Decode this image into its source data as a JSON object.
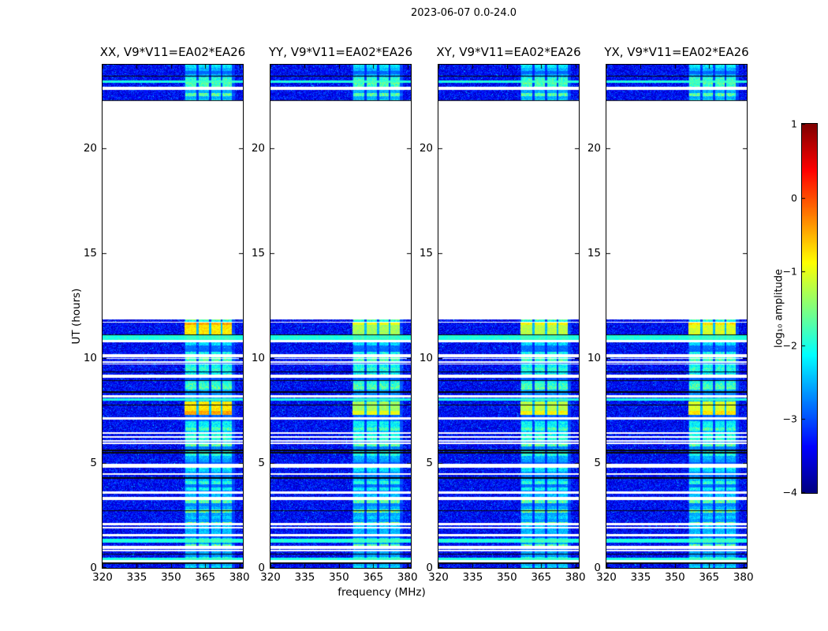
{
  "title": "2023-06-07 0.0-24.0",
  "chart_data": {
    "type": "heatmap",
    "title": "2023-06-07 0.0-24.0",
    "xlabel": "frequency (MHz)",
    "ylabel": "UT (hours)",
    "x_ticks": [
      320,
      335,
      350,
      365,
      380
    ],
    "y_ticks": [
      0,
      5,
      10,
      15,
      20
    ],
    "x_range": [
      320,
      381.5
    ],
    "y_range": [
      0,
      24
    ],
    "panels": [
      {
        "pol": "XX",
        "label": "XX, V9*V11=EA02*EA26",
        "event_level": -1.0
      },
      {
        "pol": "YY",
        "label": "YY, V9*V11=EA02*EA26",
        "event_level": -1.55
      },
      {
        "pol": "XY",
        "label": "XY, V9*V11=EA02*EA26",
        "event_level": -1.45
      },
      {
        "pol": "YX",
        "label": "YX, V9*V11=EA02*EA26",
        "event_level": -1.3
      }
    ],
    "colorbar": {
      "label": "log₁₀ amplitude",
      "ticks": [
        1,
        0,
        -1,
        -2,
        -3,
        -4
      ],
      "range": [
        -4,
        1
      ],
      "colormap": "jet"
    },
    "coverage_ut": [
      [
        0,
        11.85
      ],
      [
        22.3,
        24.0
      ]
    ],
    "gaps_ut": [
      [
        22.83,
        22.98
      ],
      [
        11.7,
        11.76
      ],
      [
        10.76,
        10.89
      ],
      [
        10.08,
        10.22
      ],
      [
        9.97,
        10.03
      ],
      [
        9.81,
        9.88
      ],
      [
        9.72,
        9.78
      ],
      [
        9.08,
        9.22
      ],
      [
        8.14,
        8.26
      ],
      [
        7.1,
        7.2
      ],
      [
        6.42,
        6.5
      ],
      [
        6.23,
        6.31
      ],
      [
        6.04,
        6.12
      ],
      [
        5.93,
        5.99
      ],
      [
        4.79,
        4.98
      ],
      [
        4.45,
        4.55
      ],
      [
        3.55,
        3.68
      ],
      [
        3.27,
        3.39
      ],
      [
        2.05,
        2.17
      ],
      [
        1.89,
        1.97
      ],
      [
        1.51,
        1.62
      ],
      [
        0.94,
        1.07
      ],
      [
        0.81,
        0.89
      ],
      [
        0.3,
        0.38
      ]
    ],
    "black_lines_ut": [
      [
        23.44,
        23.5
      ],
      [
        22.28,
        22.34
      ],
      [
        11.1,
        11.17
      ],
      [
        9.33,
        9.39
      ],
      [
        8.92,
        8.98
      ],
      [
        8.37,
        8.43
      ],
      [
        7.76,
        7.82
      ],
      [
        5.6,
        5.66
      ],
      [
        5.48,
        5.53
      ],
      [
        4.28,
        4.33
      ],
      [
        2.71,
        2.77
      ],
      [
        0.64,
        0.71
      ],
      [
        0.22,
        0.27
      ]
    ],
    "bright_rows_ut": [
      [
        23.17,
        23.26
      ],
      [
        10.89,
        11.1
      ],
      [
        8.0,
        8.12
      ],
      [
        1.21,
        1.4
      ],
      [
        0.39,
        0.52
      ]
    ],
    "rfi_band": {
      "freq_range": [
        356,
        378
      ],
      "stripes": [
        [
          356.3,
          361.2
        ],
        [
          362.1,
          366.8
        ],
        [
          367.6,
          371.8
        ],
        [
          372.5,
          376.6
        ]
      ],
      "separators": [
        [
          361.2,
          362.1
        ],
        [
          366.8,
          367.6
        ],
        [
          371.8,
          372.5
        ]
      ]
    },
    "events": [
      {
        "ut": [
          11.17,
          11.7
        ],
        "freq": [
          356.0,
          376.6
        ],
        "hot_edge": "top"
      },
      {
        "ut": [
          7.3,
          7.97
        ],
        "freq": [
          356.0,
          376.6
        ],
        "hot_edge": "bottom"
      }
    ],
    "noise_floor": -3.7
  }
}
